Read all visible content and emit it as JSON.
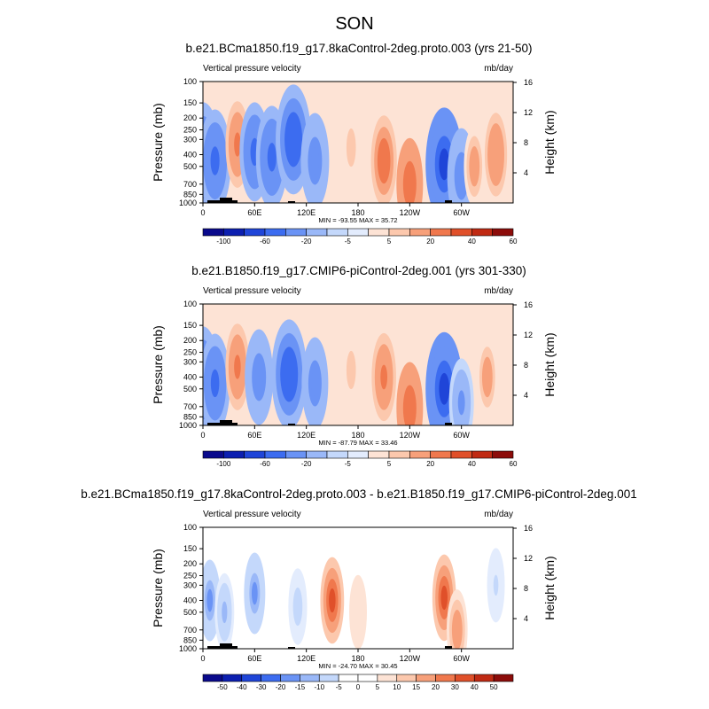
{
  "page_title": "SON",
  "chart_data": [
    {
      "type": "heatmap",
      "title": "b.e21.BCma1850.f19_g17.8kaControl-2deg.proto.003 (yrs 21-50)",
      "subtitle_left": "Vertical pressure velocity",
      "units": "mb/day",
      "ylabel": "Pressure (mb)",
      "y2label": "Height (km)",
      "yticks": [
        "100",
        "150",
        "200",
        "250",
        "300",
        "400",
        "500",
        "700",
        "850",
        "1000"
      ],
      "y2ticks": [
        "16",
        "12",
        "8",
        "4"
      ],
      "xticks": [
        "0",
        "60E",
        "120E",
        "180",
        "120W",
        "60W"
      ],
      "stats": "MIN = -93.55  MAX =  35.72",
      "colorbar_labels": [
        "-100",
        "-60",
        "-20",
        "-5",
        "5",
        "20",
        "40",
        "60"
      ],
      "features": [
        {
          "lon": 0,
          "p": 420,
          "value": -55
        },
        {
          "lon": 14,
          "p": 450,
          "value": -45
        },
        {
          "lon": 40,
          "p": 330,
          "value": 22
        },
        {
          "lon": 60,
          "p": 380,
          "value": -40
        },
        {
          "lon": 80,
          "p": 420,
          "value": -45
        },
        {
          "lon": 105,
          "p": 300,
          "value": -55
        },
        {
          "lon": 130,
          "p": 450,
          "value": -35
        },
        {
          "lon": 172,
          "p": 350,
          "value": 8
        },
        {
          "lon": 210,
          "p": 450,
          "value": 28
        },
        {
          "lon": 240,
          "p": 700,
          "value": 30
        },
        {
          "lon": 280,
          "p": 480,
          "value": -65
        },
        {
          "lon": 300,
          "p": 600,
          "value": -35
        },
        {
          "lon": 315,
          "p": 500,
          "value": 14
        },
        {
          "lon": 340,
          "p": 400,
          "value": 18
        }
      ]
    },
    {
      "type": "heatmap",
      "title": "b.e21.B1850.f19_g17.CMIP6-piControl-2deg.001 (yrs 301-330)",
      "subtitle_left": "Vertical pressure velocity",
      "units": "mb/day",
      "ylabel": "Pressure (mb)",
      "y2label": "Height (km)",
      "yticks": [
        "100",
        "150",
        "200",
        "250",
        "300",
        "400",
        "500",
        "700",
        "850",
        "1000"
      ],
      "y2ticks": [
        "16",
        "12",
        "8",
        "4"
      ],
      "xticks": [
        "0",
        "60E",
        "120E",
        "180",
        "120W",
        "60W"
      ],
      "stats": "MIN = -87.79  MAX =  33.46",
      "colorbar_labels": [
        "-100",
        "-60",
        "-20",
        "-5",
        "5",
        "20",
        "40",
        "60"
      ],
      "features": [
        {
          "lon": 0,
          "p": 420,
          "value": -50
        },
        {
          "lon": 14,
          "p": 450,
          "value": -40
        },
        {
          "lon": 40,
          "p": 330,
          "value": 22
        },
        {
          "lon": 65,
          "p": 400,
          "value": -35
        },
        {
          "lon": 100,
          "p": 380,
          "value": -55
        },
        {
          "lon": 130,
          "p": 450,
          "value": -30
        },
        {
          "lon": 172,
          "p": 350,
          "value": 8
        },
        {
          "lon": 210,
          "p": 400,
          "value": 24
        },
        {
          "lon": 240,
          "p": 720,
          "value": 30
        },
        {
          "lon": 280,
          "p": 500,
          "value": -60
        },
        {
          "lon": 300,
          "p": 650,
          "value": -25
        },
        {
          "lon": 330,
          "p": 400,
          "value": 14
        }
      ]
    },
    {
      "type": "heatmap",
      "title": "b.e21.BCma1850.f19_g17.8kaControl-2deg.proto.003 - b.e21.B1850.f19_g17.CMIP6-piControl-2deg.001",
      "subtitle_left": "Vertical pressure velocity",
      "units": "mb/day",
      "ylabel": "Pressure (mb)",
      "y2label": "Height (km)",
      "yticks": [
        "100",
        "150",
        "200",
        "250",
        "300",
        "400",
        "500",
        "700",
        "850",
        "1000"
      ],
      "y2ticks": [
        "16",
        "12",
        "8",
        "4"
      ],
      "xticks": [
        "0",
        "60E",
        "120E",
        "180",
        "120W",
        "60W"
      ],
      "stats": "MIN = -24.70  MAX =  30.45",
      "colorbar_labels": [
        "-50",
        "-40",
        "-30",
        "-20",
        "-15",
        "-10",
        "-5",
        "0",
        "5",
        "10",
        "15",
        "20",
        "30",
        "40",
        "50"
      ],
      "features": [
        {
          "lon": 8,
          "p": 400,
          "value": -15
        },
        {
          "lon": 25,
          "p": 500,
          "value": -10
        },
        {
          "lon": 60,
          "p": 350,
          "value": -15
        },
        {
          "lon": 110,
          "p": 450,
          "value": -8
        },
        {
          "lon": 150,
          "p": 400,
          "value": 22
        },
        {
          "lon": 180,
          "p": 500,
          "value": 5
        },
        {
          "lon": 280,
          "p": 380,
          "value": 22
        },
        {
          "lon": 295,
          "p": 700,
          "value": 14
        },
        {
          "lon": 340,
          "p": 300,
          "value": -5
        }
      ]
    }
  ],
  "colors": {
    "scale": [
      "#0a0a8c",
      "#0c1fb0",
      "#1f45d8",
      "#3c6cf0",
      "#6a93f5",
      "#9ab8f8",
      "#c4d8fb",
      "#e3ecfd",
      "#fde3d5",
      "#fcc8ad",
      "#f7a07a",
      "#f0784d",
      "#e0502a",
      "#c02a13",
      "#8c0c0a"
    ],
    "neutral": "#ffffff",
    "terrain": "#000000"
  }
}
